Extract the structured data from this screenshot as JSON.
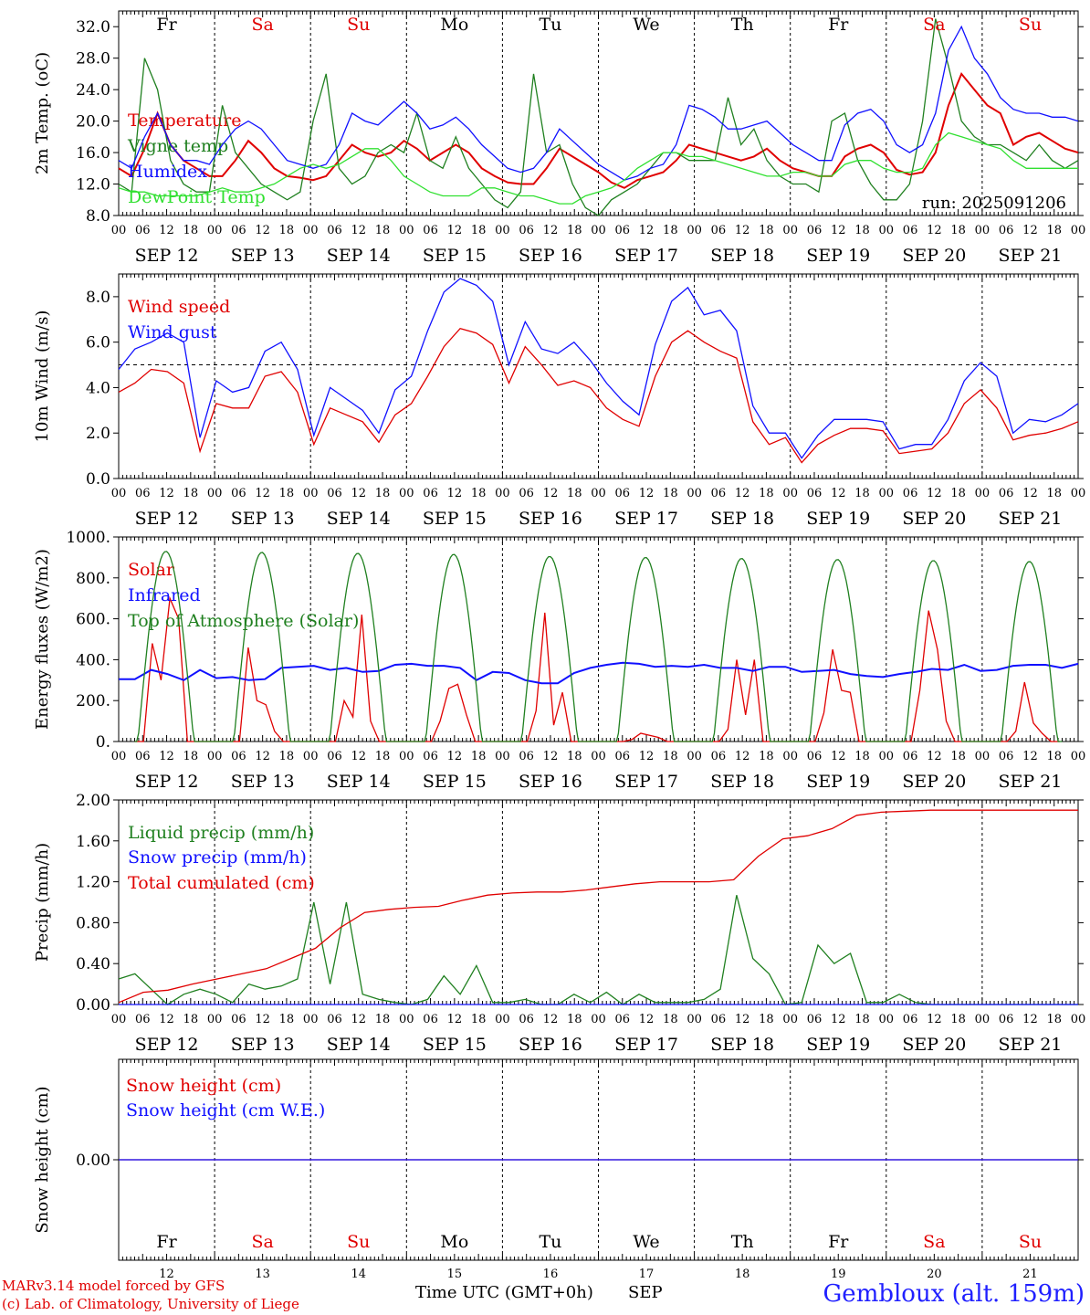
{
  "footer": {
    "model_credit": "MARv3.14 model forced by GFS",
    "lab_credit": "(c) Lab. of Climatology, University of Liege",
    "station": "Gembloux (alt. 159m)",
    "xlabel_time": "Time UTC (GMT+0h)",
    "xlabel_month": "SEP"
  },
  "colors": {
    "red": "#e00000",
    "green": "#208020",
    "blue": "#1010ff",
    "lightgreen": "#30e030"
  },
  "days": {
    "weekday": [
      "Fr",
      "Sa",
      "Su",
      "Mo",
      "Tu",
      "We",
      "Th",
      "Fr",
      "Sa",
      "Su"
    ],
    "weekend": [
      false,
      true,
      true,
      false,
      false,
      false,
      false,
      false,
      true,
      true
    ],
    "date_labels": [
      "SEP 12",
      "SEP 13",
      "SEP 14",
      "SEP 15",
      "SEP 16",
      "SEP 17",
      "SEP 18",
      "SEP 19",
      "SEP 20",
      "SEP 21"
    ],
    "day_numbers": [
      "12",
      "13",
      "14",
      "15",
      "16",
      "17",
      "18",
      "19",
      "20",
      "21"
    ],
    "hour_ticks": [
      "00",
      "06",
      "12",
      "18"
    ],
    "end_tick": "00"
  },
  "chart_data": [
    {
      "type": "line",
      "ylabel": "2m Temp. (oC)",
      "ylim": [
        8,
        34
      ],
      "yticks": [
        "8.0",
        "12.0",
        "16.0",
        "20.0",
        "24.0",
        "28.0",
        "32.0"
      ],
      "annotation": "run: 2025091206",
      "series": [
        {
          "name": "Temperature",
          "color": "red",
          "values": [
            14,
            13,
            16.5,
            21,
            17,
            15,
            14,
            13,
            13,
            15,
            17.5,
            16,
            14,
            13,
            12.8,
            12.5,
            13,
            15,
            17,
            16,
            15.5,
            16,
            17.5,
            16.5,
            15,
            16,
            17,
            16,
            14,
            13,
            12.2,
            12,
            12,
            14,
            16.5,
            15.5,
            14.5,
            13.5,
            12.2,
            11.5,
            12.5,
            13,
            13.5,
            15,
            17,
            16.5,
            16,
            15.5,
            15,
            15.5,
            16.5,
            15,
            14,
            13.5,
            13,
            13,
            15.5,
            16.5,
            17,
            16,
            13.8,
            13.2,
            13.5,
            16,
            22,
            26,
            24,
            22,
            21,
            17,
            18,
            18.5,
            17.5,
            16.5,
            16
          ]
        },
        {
          "name": "Vigne temp",
          "color": "green",
          "values": [
            12,
            11,
            28,
            24,
            15,
            12,
            11,
            11,
            22,
            16,
            14,
            12,
            11,
            10,
            11,
            20,
            26,
            14,
            12,
            13,
            16,
            17,
            16,
            21,
            15,
            14,
            18,
            14,
            12,
            10,
            9,
            11,
            26,
            16,
            17,
            12,
            9,
            8,
            10,
            11,
            12,
            14,
            16,
            16,
            15,
            15,
            15,
            23,
            17,
            19,
            15,
            13,
            12,
            12,
            11,
            20,
            21,
            15,
            12,
            10,
            10,
            12,
            20,
            33,
            27,
            20,
            18,
            17,
            17,
            16,
            15,
            17,
            15,
            14,
            15
          ]
        },
        {
          "name": "Humidex",
          "color": "blue",
          "values": [
            15,
            14,
            18,
            21,
            17,
            15,
            15,
            14.5,
            17,
            19,
            20,
            19,
            17,
            15,
            14.5,
            14,
            14.5,
            17,
            21,
            20,
            19.5,
            21,
            22.5,
            21,
            19,
            19.5,
            20.5,
            19,
            17,
            15.5,
            14,
            13.5,
            14,
            16,
            19,
            17.5,
            16,
            14.5,
            13.5,
            12.5,
            13,
            14,
            14.5,
            17,
            22,
            21.5,
            20.5,
            19,
            19,
            19.5,
            20,
            18.5,
            17,
            16,
            15,
            15,
            19.5,
            21,
            21.5,
            20,
            17,
            16,
            17,
            21,
            29,
            32,
            28,
            26,
            23,
            21.5,
            21,
            21,
            20.5,
            20.5,
            20
          ]
        },
        {
          "name": "DewPoint Temp",
          "color": "lightgreen",
          "values": [
            11.5,
            11,
            11,
            10.5,
            10.5,
            10.5,
            10.5,
            11,
            11.5,
            11,
            11,
            11.5,
            12,
            13,
            14,
            14.5,
            14,
            14.5,
            15.5,
            16.5,
            16.5,
            15,
            13,
            12,
            11,
            10.5,
            10.5,
            10.5,
            11.5,
            11.5,
            11,
            10.5,
            10.5,
            10,
            9.5,
            9.5,
            10.5,
            11,
            11.5,
            12.5,
            14,
            15,
            16,
            16,
            15.5,
            15.5,
            15,
            14.5,
            14,
            13.5,
            13,
            13,
            13.5,
            13.5,
            13,
            13,
            14.5,
            15,
            15,
            14,
            13.5,
            13.5,
            14,
            17,
            18.5,
            18,
            17.5,
            17,
            16.5,
            15,
            14,
            14,
            14,
            14,
            14
          ]
        }
      ]
    },
    {
      "type": "line",
      "ylabel": "10m Wind (m/s)",
      "ylim": [
        0,
        9
      ],
      "yticks": [
        "0.0",
        "2.0",
        "4.0",
        "6.0",
        "8.0"
      ],
      "reference_line": 5,
      "series": [
        {
          "name": "Wind speed",
          "color": "red",
          "values": [
            3.8,
            4.2,
            4.8,
            4.7,
            4.2,
            1.2,
            3.3,
            3.1,
            3.1,
            4.5,
            4.7,
            3.8,
            1.5,
            3.1,
            2.8,
            2.5,
            1.6,
            2.8,
            3.3,
            4.5,
            5.8,
            6.6,
            6.4,
            5.9,
            4.2,
            5.8,
            5.0,
            4.1,
            4.3,
            4.0,
            3.1,
            2.6,
            2.3,
            4.5,
            6.0,
            6.5,
            6.0,
            5.6,
            5.3,
            2.5,
            1.5,
            1.8,
            0.7,
            1.5,
            1.9,
            2.2,
            2.2,
            2.1,
            1.1,
            1.2,
            1.3,
            2.0,
            3.3,
            3.9,
            3.1,
            1.7,
            1.9,
            2.0,
            2.2,
            2.5
          ]
        },
        {
          "name": "Wind gust",
          "color": "blue",
          "values": [
            4.8,
            5.7,
            6.0,
            6.4,
            6.0,
            1.8,
            4.3,
            3.8,
            4.0,
            5.6,
            6.0,
            4.8,
            1.9,
            4.0,
            3.5,
            3.0,
            2.0,
            3.9,
            4.5,
            6.5,
            8.2,
            8.8,
            8.5,
            7.8,
            5.0,
            6.9,
            5.7,
            5.5,
            6.0,
            5.2,
            4.2,
            3.4,
            2.8,
            5.9,
            7.8,
            8.4,
            7.2,
            7.4,
            6.5,
            3.2,
            2.0,
            2.0,
            0.9,
            1.9,
            2.6,
            2.6,
            2.6,
            2.5,
            1.3,
            1.5,
            1.5,
            2.6,
            4.3,
            5.1,
            4.5,
            2.0,
            2.6,
            2.5,
            2.8,
            3.3
          ]
        }
      ]
    },
    {
      "type": "line",
      "ylabel": "Energy fluxes (W/m2)",
      "ylim": [
        0,
        1000
      ],
      "yticks": [
        "0.",
        "200.",
        "400.",
        "600.",
        "800.",
        "1000."
      ],
      "series": [
        {
          "name": "Solar",
          "color": "red",
          "values": [
            [
              0,
              0,
              480,
              300,
              700,
              600,
              0,
              0
            ],
            [
              0,
              0,
              460,
              200,
              180,
              50,
              0,
              0
            ],
            [
              0,
              0,
              200,
              120,
              620,
              100,
              0,
              0
            ],
            [
              0,
              0,
              100,
              260,
              280,
              130,
              0,
              0
            ],
            [
              0,
              0,
              150,
              630,
              80,
              240,
              0,
              0
            ],
            [
              0,
              0,
              10,
              40,
              30,
              20,
              0,
              0
            ],
            [
              0,
              0,
              60,
              400,
              130,
              400,
              0,
              0
            ],
            [
              0,
              0,
              140,
              450,
              250,
              240,
              0,
              0
            ],
            [
              0,
              0,
              250,
              640,
              450,
              100,
              0,
              0
            ],
            [
              0,
              0,
              50,
              290,
              90,
              40,
              0,
              0
            ]
          ]
        },
        {
          "name": "Infrared",
          "color": "blue",
          "values": [
            305,
            305,
            350,
            330,
            300,
            350,
            310,
            315,
            300,
            305,
            360,
            365,
            370,
            350,
            360,
            340,
            345,
            375,
            380,
            370,
            370,
            360,
            300,
            340,
            335,
            300,
            285,
            285,
            335,
            360,
            375,
            385,
            380,
            365,
            370,
            365,
            375,
            360,
            360,
            345,
            365,
            365,
            340,
            345,
            350,
            330,
            320,
            315,
            330,
            340,
            355,
            350,
            375,
            345,
            350,
            370,
            375,
            375,
            360,
            380
          ]
        },
        {
          "name": "Top of Atmosphere (Solar)",
          "color": "green",
          "values": [
            930,
            925,
            920,
            915,
            905,
            900,
            895,
            890,
            885,
            880
          ]
        }
      ]
    },
    {
      "type": "line",
      "ylabel": "Precip (mm/h)",
      "ylim": [
        0,
        2
      ],
      "yticks": [
        "0.00",
        "0.40",
        "0.80",
        "1.20",
        "1.60",
        "2.00"
      ],
      "series": [
        {
          "name": "Liquid precip (mm/h)",
          "color": "green",
          "values": [
            0.25,
            0.3,
            0.15,
            0,
            0.1,
            0.15,
            0.1,
            0.02,
            0.2,
            0.15,
            0.18,
            0.25,
            1.0,
            0.2,
            1.0,
            0.1,
            0.05,
            0.02,
            0,
            0.05,
            0.28,
            0.1,
            0.38,
            0.02,
            0.02,
            0.05,
            0,
            0,
            0.1,
            0.02,
            0.12,
            0,
            0.1,
            0.02,
            0.02,
            0.02,
            0.05,
            0.15,
            1.07,
            0.45,
            0.3,
            0,
            0.02,
            0.58,
            0.4,
            0.5,
            0.02,
            0.02,
            0.1,
            0.02,
            0,
            0,
            0,
            0,
            0,
            0,
            0,
            0,
            0,
            0
          ]
        },
        {
          "name": "Snow precip (mm/h)",
          "color": "blue",
          "values": [
            0,
            0,
            0,
            0,
            0,
            0,
            0,
            0,
            0,
            0
          ]
        },
        {
          "name": "Total cumulated (cm)",
          "color": "red",
          "values": [
            0.02,
            0.12,
            0.14,
            0.2,
            0.25,
            0.3,
            0.35,
            0.45,
            0.55,
            0.75,
            0.9,
            0.93,
            0.95,
            0.96,
            1.02,
            1.07,
            1.09,
            1.1,
            1.1,
            1.12,
            1.15,
            1.18,
            1.2,
            1.2,
            1.2,
            1.22,
            1.45,
            1.62,
            1.65,
            1.72,
            1.85,
            1.88,
            1.89,
            1.9,
            1.9,
            1.9,
            1.9,
            1.9,
            1.9,
            1.9
          ]
        }
      ]
    },
    {
      "type": "line",
      "ylabel": "Snow height (cm)",
      "ylim": [
        -1,
        1
      ],
      "yticks": [
        "0.00"
      ],
      "series": [
        {
          "name": "Snow height (cm)",
          "color": "red",
          "values": [
            0,
            0
          ]
        },
        {
          "name": "Snow height (cm W.E.)",
          "color": "blue",
          "values": [
            0,
            0
          ]
        }
      ]
    }
  ]
}
